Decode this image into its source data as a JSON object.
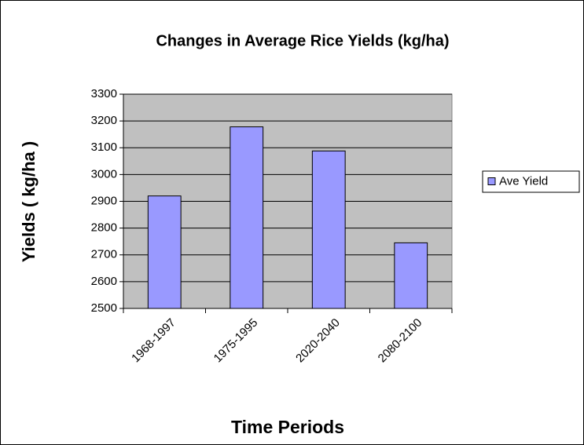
{
  "chart_data": {
    "type": "bar",
    "title": "Changes in Average Rice Yields (kg/ha)",
    "x_label": "Time Periods",
    "y_label": "Yields ( kg/ha )",
    "categories": [
      "1968-1997",
      "1975-1995",
      "2020-2040",
      "2080-2100"
    ],
    "series": [
      {
        "name": "Ave Yield",
        "color": "#9999ff",
        "values": [
          2920,
          3178,
          3088,
          2745
        ]
      }
    ],
    "ylim": [
      2500,
      3300
    ],
    "yticks": [
      2500,
      2600,
      2700,
      2800,
      2900,
      3000,
      3100,
      3200,
      3300
    ],
    "grid": true,
    "legend": "right"
  }
}
